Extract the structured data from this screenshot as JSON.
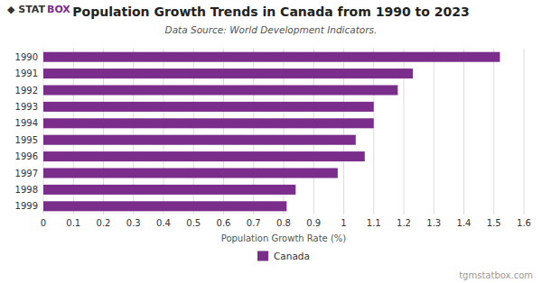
{
  "chart_data": {
    "type": "bar",
    "orientation": "horizontal",
    "title": "Population Growth Trends in Canada from 1990 to 2023",
    "subtitle": "Data Source: World Development Indicators.",
    "xlabel": "Population Growth Rate (%)",
    "categories": [
      "1990",
      "1991",
      "1992",
      "1993",
      "1994",
      "1995",
      "1996",
      "1997",
      "1998",
      "1999"
    ],
    "series": [
      {
        "name": "Canada",
        "color": "#7B2D8B",
        "values": [
          1.52,
          1.23,
          1.18,
          1.1,
          1.1,
          1.04,
          1.07,
          0.98,
          0.84,
          0.81
        ]
      }
    ],
    "xlim": [
      0,
      1.6
    ],
    "xticks": [
      0,
      0.1,
      0.2,
      0.3,
      0.4,
      0.5,
      0.6,
      0.7,
      0.8,
      0.9,
      1.0,
      1.1,
      1.2,
      1.3,
      1.4,
      1.5,
      1.6
    ],
    "grid": true,
    "legend": "bottom",
    "annotations": [
      "tgmstatbox.com",
      "◆ STAT",
      "BOX"
    ]
  }
}
